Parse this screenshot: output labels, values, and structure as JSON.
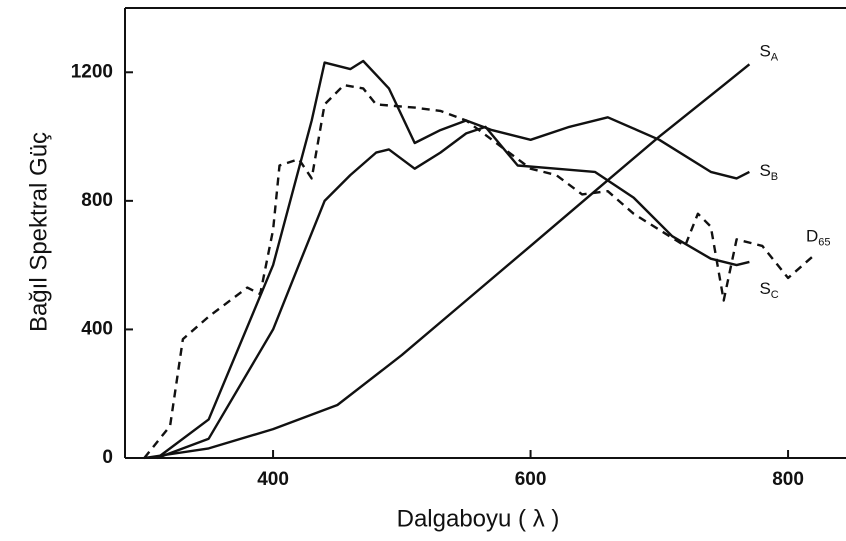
{
  "chart_data": {
    "type": "line",
    "xlabel": "Dalgaboyu ( λ )",
    "ylabel": "Bağıl Spektral Güç",
    "xlim": [
      285,
      845
    ],
    "ylim": [
      0,
      1400
    ],
    "xticks": [
      400,
      600,
      800
    ],
    "yticks": [
      0,
      400,
      800,
      1200
    ],
    "grid": false,
    "series": [
      {
        "name": {
          "main": "S",
          "sub": "A"
        },
        "color": "#111111",
        "dash": false,
        "x": [
          300,
          350,
          400,
          450,
          500,
          550,
          600,
          650,
          700,
          750,
          770
        ],
        "values": [
          0,
          30,
          90,
          165,
          320,
          490,
          660,
          830,
          1000,
          1160,
          1225
        ]
      },
      {
        "name": {
          "main": "S",
          "sub": "B"
        },
        "color": "#111111",
        "dash": false,
        "x": [
          310,
          350,
          400,
          430,
          440,
          460,
          470,
          490,
          510,
          530,
          550,
          570,
          600,
          630,
          660,
          700,
          740,
          760,
          770
        ],
        "values": [
          0,
          120,
          600,
          1050,
          1230,
          1210,
          1235,
          1150,
          980,
          1020,
          1050,
          1020,
          990,
          1030,
          1060,
          990,
          890,
          870,
          890
        ]
      },
      {
        "name": {
          "main": "S",
          "sub": "C"
        },
        "color": "#111111",
        "dash": false,
        "x": [
          310,
          350,
          400,
          420,
          440,
          460,
          480,
          490,
          510,
          530,
          550,
          565,
          590,
          620,
          650,
          680,
          710,
          740,
          760,
          770
        ],
        "values": [
          0,
          60,
          400,
          600,
          800,
          880,
          950,
          960,
          900,
          950,
          1010,
          1030,
          910,
          900,
          890,
          810,
          690,
          620,
          600,
          610
        ]
      },
      {
        "name": {
          "main": "D",
          "sub": "65"
        },
        "color": "#111111",
        "dash": true,
        "x": [
          300,
          320,
          330,
          350,
          380,
          390,
          400,
          405,
          420,
          430,
          440,
          455,
          470,
          480,
          510,
          530,
          550,
          580,
          600,
          620,
          640,
          660,
          680,
          700,
          720,
          730,
          740,
          750,
          760,
          780,
          800,
          820
        ],
        "values": [
          0,
          100,
          370,
          440,
          530,
          510,
          710,
          910,
          930,
          870,
          1100,
          1160,
          1150,
          1100,
          1090,
          1080,
          1050,
          960,
          900,
          880,
          820,
          830,
          760,
          710,
          660,
          760,
          720,
          490,
          680,
          660,
          560,
          630
        ]
      }
    ]
  }
}
